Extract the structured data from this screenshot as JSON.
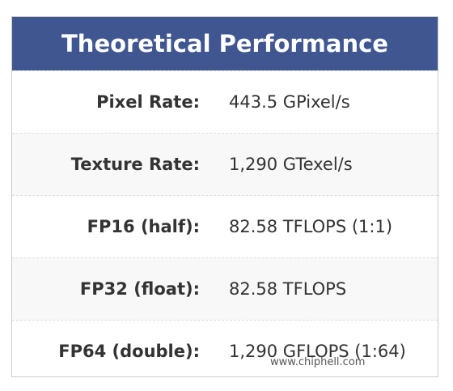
{
  "header": {
    "title": "Theoretical Performance"
  },
  "table": {
    "rows": [
      [
        "Pixel Rate:",
        "443.5 GPixel/s"
      ],
      [
        "Texture Rate:",
        "1,290 GTexel/s"
      ],
      [
        "FP16 (half):",
        "82.58 TFLOPS (1:1)"
      ],
      [
        "FP32 (float):",
        "82.58 TFLOPS"
      ],
      [
        "FP64 (double):",
        "1,290 GFLOPS (1:64)"
      ]
    ]
  },
  "watermark": {
    "text": "www.chiphell.com"
  }
}
